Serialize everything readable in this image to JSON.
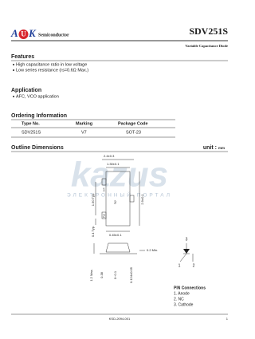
{
  "header": {
    "logo": [
      "A",
      "U",
      "K"
    ],
    "company": "Semiconductor",
    "part": "SDV251S",
    "subtitle": "Variable Capacitance Diode"
  },
  "features": {
    "title": "Features",
    "items": [
      "High capacitance ratio in low voltage",
      "Low series resistance (rs=0.6Ω Max.)"
    ]
  },
  "application": {
    "title": "Application",
    "items": [
      "AFC, VCO application"
    ]
  },
  "ordering": {
    "title": "Ordering Information",
    "headers": [
      "Type No.",
      "Marking",
      "Package Code"
    ],
    "rows": [
      [
        "SDV251S",
        "V7",
        "SOT-23"
      ]
    ]
  },
  "outline": {
    "title": "Outline Dimensions",
    "unit": "unit :",
    "unit_value": "mm",
    "dimensions": [
      "2.4±0.3",
      "1.30±0.1",
      "1.90 Typ.",
      "2.9±0.1",
      "0.4 Typ.",
      "0.45±0.1",
      "0.2 Min.",
      "1.2 Max.",
      "0.38",
      "0~0.1",
      "0.124±0.05"
    ],
    "pins": [
      "1",
      "2",
      "3"
    ],
    "symbol_pins": [
      "3",
      "1",
      "2"
    ]
  },
  "watermark": {
    "logo": "kazus",
    "tagline": "ЭЛЕКТРОННЫЙ ПОРТАЛ"
  },
  "pin_connections": {
    "title": "PIN Connections",
    "items": [
      "1. Anode",
      "2. NC",
      "3. Cathode"
    ]
  },
  "footer": {
    "doc": "KSD-2094-001",
    "page": "1"
  }
}
